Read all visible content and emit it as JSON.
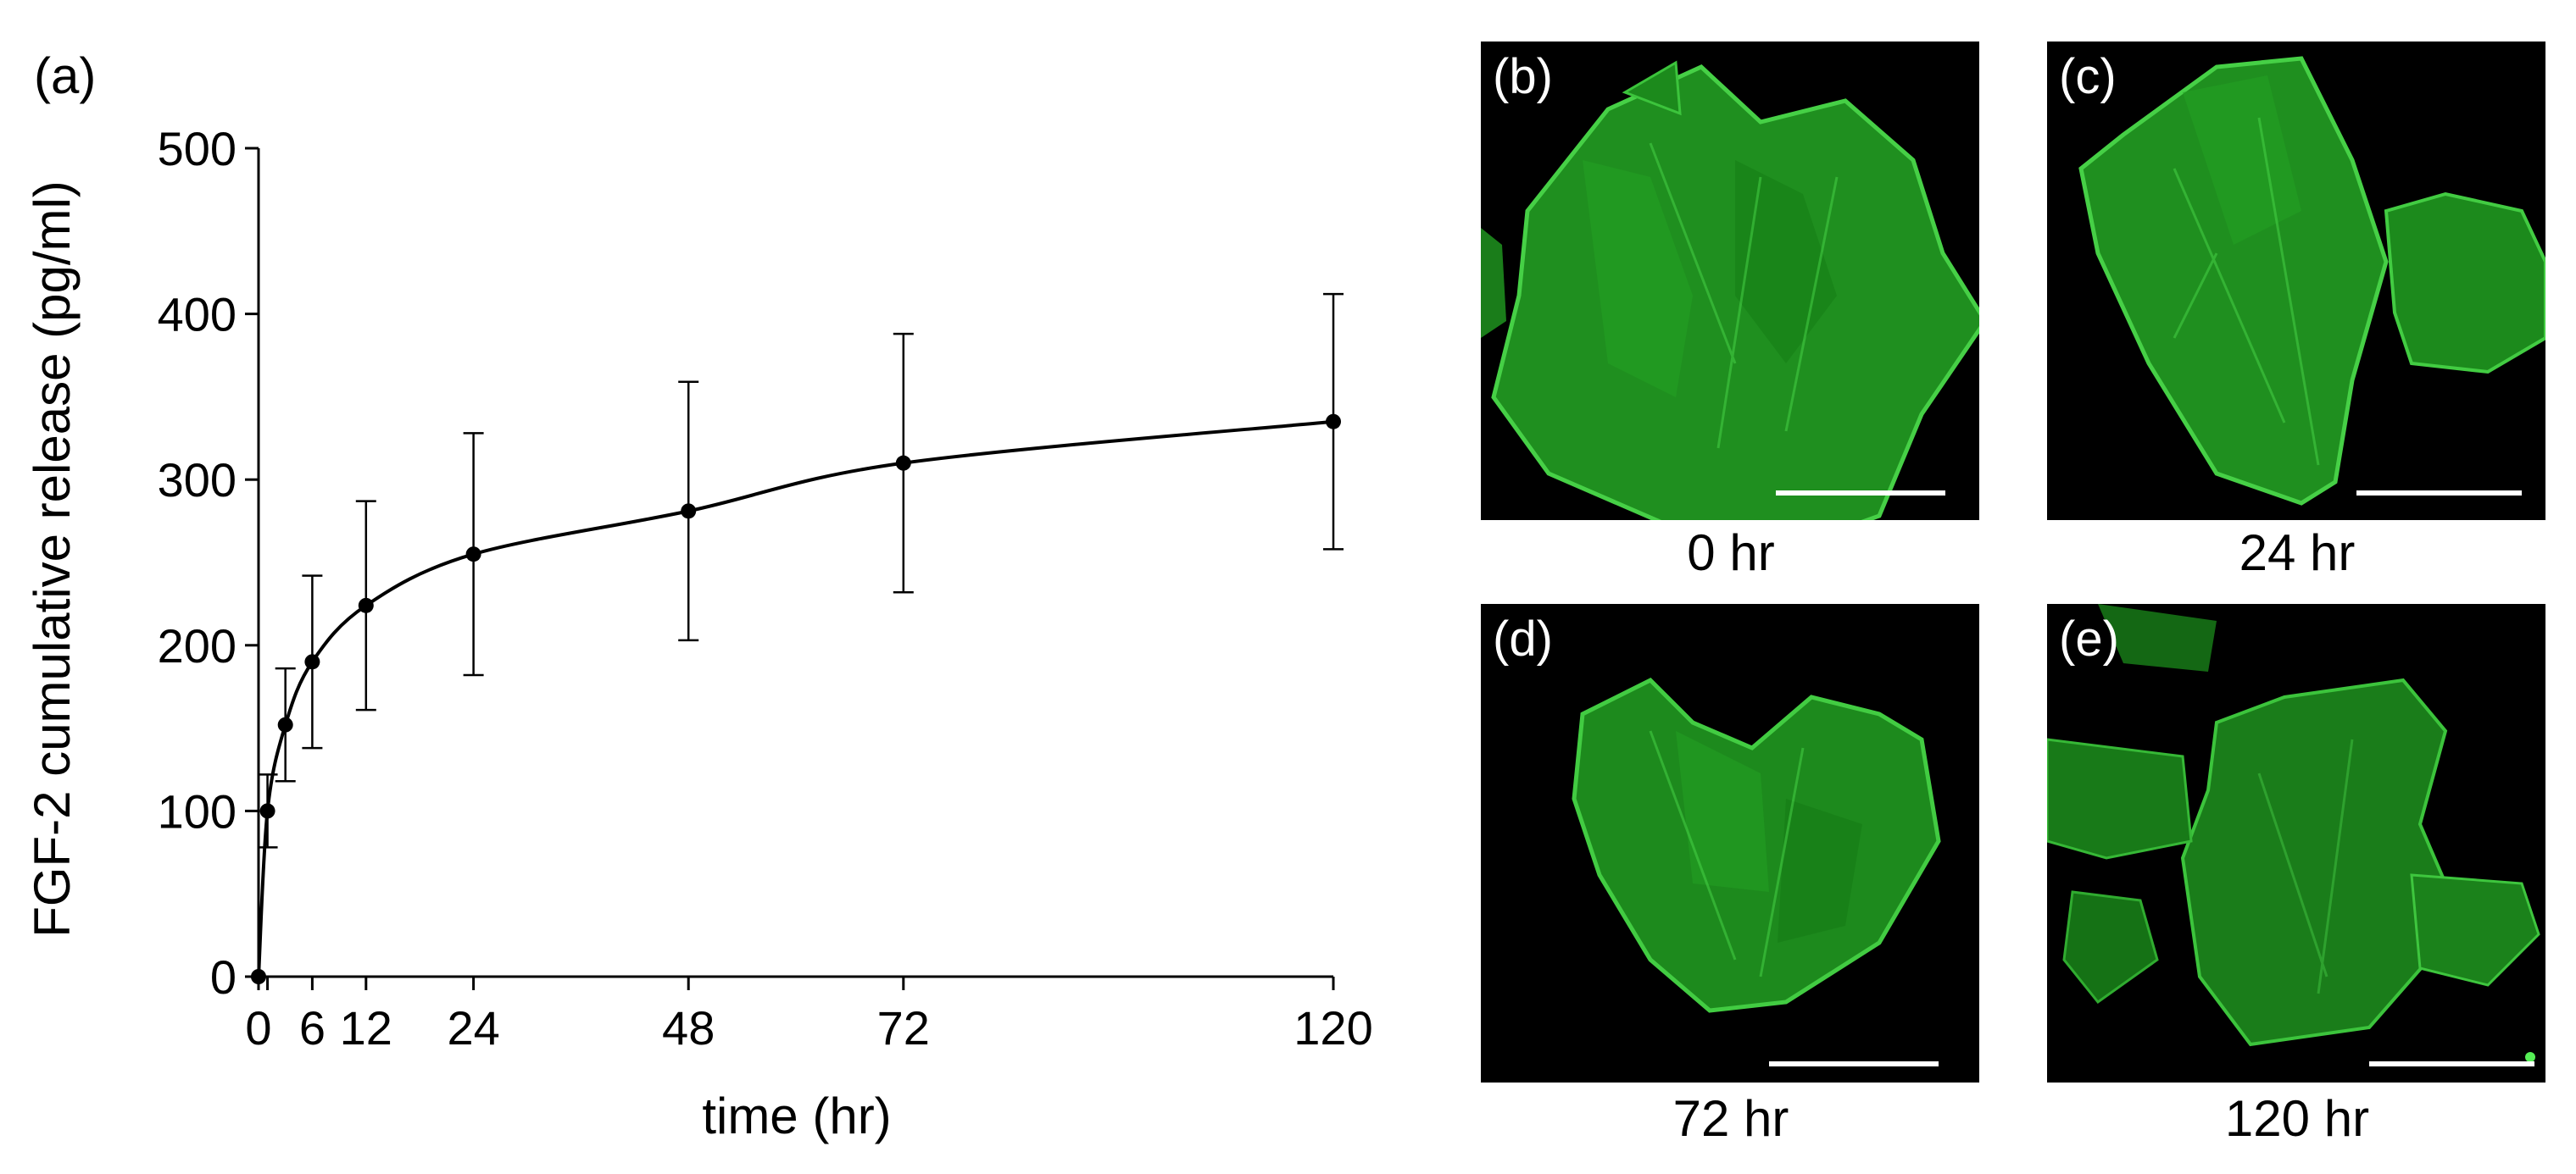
{
  "chart_data": {
    "type": "line",
    "panel_label": "(a)",
    "title": "",
    "xlabel": "time (hr)",
    "ylabel": "FGF-2 cumulative release (pg/ml)",
    "xlim": [
      0,
      120
    ],
    "ylim": [
      0,
      500
    ],
    "xticks": [
      0,
      1,
      6,
      12,
      24,
      48,
      72,
      120
    ],
    "yticks": [
      0,
      100,
      200,
      300,
      400,
      500
    ],
    "grid": false,
    "legend": "none",
    "series": [
      {
        "x": [
          0,
          1,
          3,
          6,
          12,
          24,
          48,
          72,
          120
        ],
        "y": [
          0,
          100,
          152,
          190,
          224,
          255,
          281,
          310,
          335
        ],
        "error": [
          0,
          22,
          34,
          52,
          63,
          73,
          78,
          78,
          77
        ]
      }
    ],
    "colors": {
      "line": "#000000",
      "marker": "#000000",
      "errorbar": "#000000"
    }
  },
  "panels": [
    {
      "id": "b",
      "label": "(b)",
      "caption": "0 hr"
    },
    {
      "id": "c",
      "label": "(c)",
      "caption": "24 hr"
    },
    {
      "id": "d",
      "label": "(d)",
      "caption": "72 hr"
    },
    {
      "id": "e",
      "label": "(e)",
      "caption": "120 hr"
    }
  ],
  "colors": {
    "fluorescence": "#2fb52f",
    "panel_background": "#000000",
    "scale_bar": "#ffffff"
  }
}
